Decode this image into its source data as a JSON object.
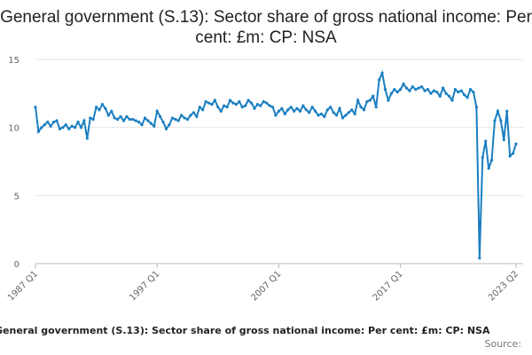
{
  "page": {
    "title": "General government (S.13): Sector share of gross national income: Per cent: £m: CP: NSA",
    "footer_title": "General government (S.13): Sector share of gross national income: Per cent: £m: CP: NSA",
    "footer_source": "Source:"
  },
  "chart_data": {
    "type": "line",
    "title": "General government (S.13): Sector share of gross national income: Per cent: £m: CP: NSA",
    "xlabel": "",
    "ylabel": "",
    "ylim": [
      0,
      15
    ],
    "grid": true,
    "line_color": "#1a7fc1",
    "y_ticks": [
      "0",
      "5",
      "10",
      "15"
    ],
    "x_ticks": [
      "1987 Q1",
      "1997 Q1",
      "2007 Q1",
      "2017 Q1",
      "2023 Q2"
    ],
    "series": [
      {
        "values": [
          11.5,
          9.7,
          10.0,
          10.2,
          10.4,
          10.1,
          10.4,
          10.5,
          9.9,
          10.0,
          10.2,
          9.9,
          10.1,
          10.0,
          10.4,
          10.0,
          10.5,
          9.2,
          10.7,
          10.6,
          11.5,
          11.3,
          11.7,
          11.4,
          10.9,
          11.2,
          10.7,
          10.6,
          10.8,
          10.5,
          10.8,
          10.6,
          10.6,
          10.5,
          10.4,
          10.2,
          10.7,
          10.5,
          10.3,
          10.1,
          11.2,
          10.8,
          10.4,
          9.9,
          10.2,
          10.7,
          10.6,
          10.5,
          10.9,
          10.7,
          10.6,
          10.9,
          11.1,
          10.8,
          11.5,
          11.3,
          11.9,
          11.8,
          11.7,
          12.0,
          11.5,
          11.2,
          11.6,
          11.5,
          12.0,
          11.8,
          11.7,
          11.9,
          11.5,
          11.6,
          12.0,
          11.8,
          11.4,
          11.7,
          11.6,
          11.9,
          11.8,
          11.6,
          11.5,
          10.9,
          11.2,
          11.4,
          11.0,
          11.3,
          11.5,
          11.2,
          11.4,
          11.2,
          11.6,
          11.3,
          11.1,
          11.5,
          11.2,
          10.9,
          11.0,
          10.8,
          11.3,
          11.5,
          11.1,
          10.9,
          11.4,
          10.7,
          10.9,
          11.1,
          11.3,
          11.0,
          12.0,
          11.5,
          11.3,
          11.9,
          12.0,
          12.3,
          11.5,
          13.5,
          14.0,
          12.8,
          12.0,
          12.5,
          12.8,
          12.6,
          12.8,
          13.2,
          12.9,
          12.7,
          13.0,
          12.8,
          12.9,
          13.0,
          12.7,
          12.8,
          12.5,
          12.7,
          12.6,
          12.3,
          12.9,
          12.5,
          12.3,
          12.0,
          12.8,
          12.6,
          12.7,
          12.4,
          12.2,
          12.8,
          12.6,
          11.5,
          0.4,
          7.8,
          9.0,
          7.0,
          7.6,
          10.5,
          11.2,
          10.5,
          9.1,
          11.2,
          7.9,
          8.1,
          8.8
        ]
      }
    ]
  }
}
